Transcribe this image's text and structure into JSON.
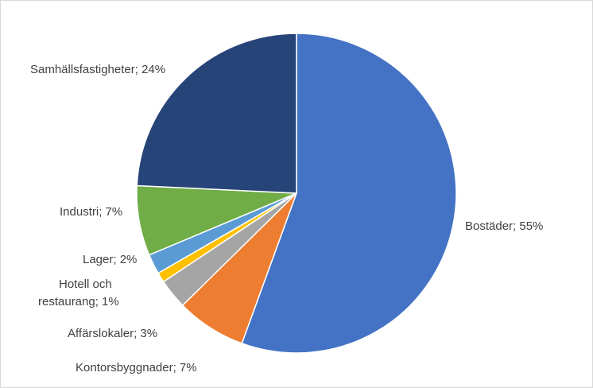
{
  "chart_data": {
    "type": "pie",
    "title": "",
    "slices": [
      {
        "name": "Bostäder",
        "value": 55,
        "label": "Bostäder; 55%",
        "color": "#4472C4"
      },
      {
        "name": "Kontorsbyggnader",
        "value": 7,
        "label": "Kontorsbyggnader; 7%",
        "color": "#ED7D31"
      },
      {
        "name": "Affärslokaler",
        "value": 3,
        "label": "Affärslokaler; 3%",
        "color": "#A5A5A5"
      },
      {
        "name": "Hotell och restaurang",
        "value": 1,
        "label_lines": [
          "Hotell och",
          "restaurang; 1%"
        ],
        "color": "#FFC000"
      },
      {
        "name": "Lager",
        "value": 2,
        "label": "Lager; 2%",
        "color": "#5B9BD5"
      },
      {
        "name": "Industri",
        "value": 7,
        "label": "Industri; 7%",
        "color": "#70AD47"
      },
      {
        "name": "Samhällsfastigheter",
        "value": 24,
        "label": "Samhällsfastigheter; 24%",
        "color": "#264478"
      }
    ],
    "start_angle": "12 o'clock",
    "direction": "clockwise",
    "legend": "none",
    "data_labels": "outside"
  }
}
